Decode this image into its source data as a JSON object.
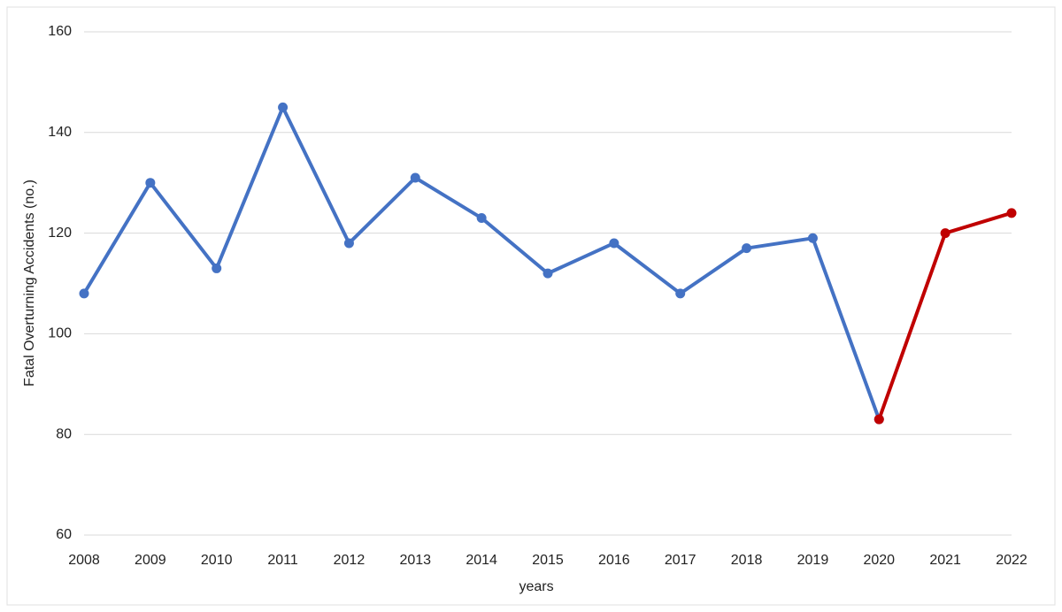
{
  "chart_data": {
    "type": "line",
    "x_label": "years",
    "y_label": "Fatal Overturning Accidents (no.)",
    "categories": [
      "2008",
      "2009",
      "2010",
      "2011",
      "2012",
      "2013",
      "2014",
      "2015",
      "2016",
      "2017",
      "2018",
      "2019",
      "2020",
      "2021",
      "2022"
    ],
    "series": [
      {
        "color": "#4472c4",
        "values": [
          108,
          130,
          113,
          145,
          118,
          131,
          123,
          112,
          118,
          108,
          117,
          119,
          83,
          null,
          null
        ]
      },
      {
        "color": "#c00000",
        "values": [
          null,
          null,
          null,
          null,
          null,
          null,
          null,
          null,
          null,
          null,
          null,
          null,
          83,
          120,
          124
        ]
      }
    ],
    "ylim": [
      60,
      160
    ],
    "yticks": [
      60,
      80,
      100,
      120,
      140,
      160
    ],
    "grid": true
  }
}
